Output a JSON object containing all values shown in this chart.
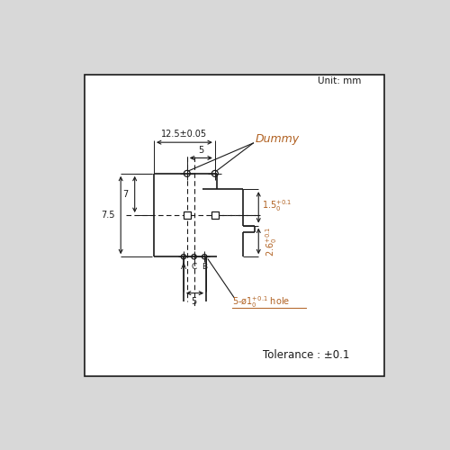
{
  "bg_color": "#d8d8d8",
  "box_color": "#ffffff",
  "line_color": "#1a1a1a",
  "blue_color": "#b06020",
  "unit_text": "Unit: mm",
  "tolerance_text": "Tolerance : ±0.1",
  "dummy_text": "Dummy",
  "dim_125": "12.5±0.05",
  "dim_5_top": "5",
  "dim_7": "7",
  "dim_75": "7.5",
  "dim_5_bot": "5",
  "labels_ACB": [
    "A",
    "C",
    "B"
  ]
}
